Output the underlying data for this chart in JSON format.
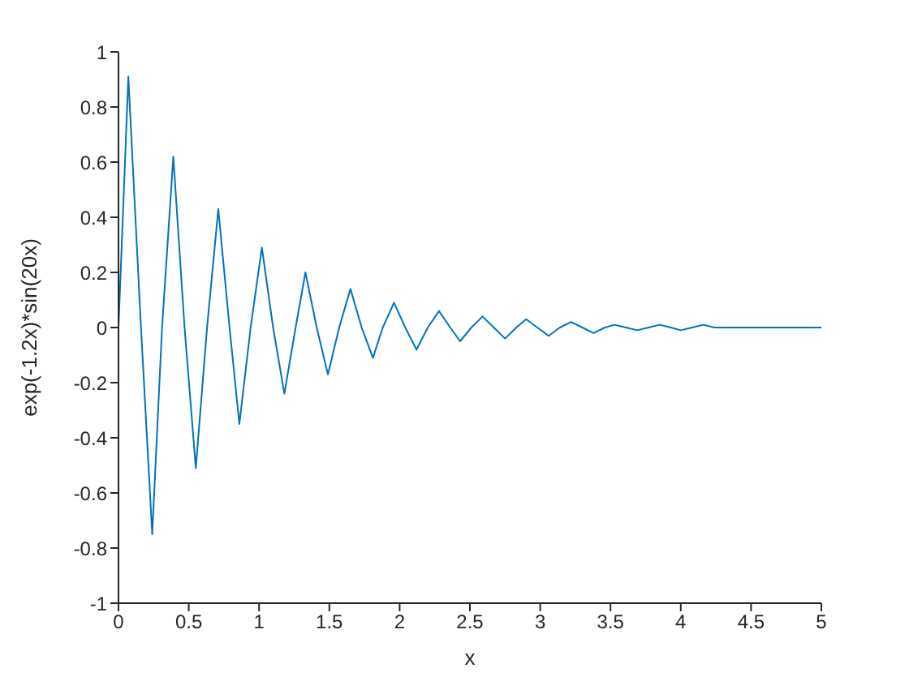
{
  "chart_data": {
    "type": "line",
    "xlabel": "x",
    "ylabel": "exp(-1.2x)*sin(20x)",
    "x": [
      0,
      0.07,
      0.16,
      0.24,
      0.31,
      0.39,
      0.47,
      0.55,
      0.63,
      0.71,
      0.79,
      0.86,
      0.94,
      1.02,
      1.1,
      1.18,
      1.26,
      1.33,
      1.41,
      1.49,
      1.57,
      1.65,
      1.73,
      1.81,
      1.88,
      1.96,
      2.04,
      2.12,
      2.2,
      2.28,
      2.36,
      2.43,
      2.51,
      2.59,
      2.67,
      2.75,
      2.83,
      2.9,
      2.98,
      3.06,
      3.14,
      3.22,
      3.3,
      3.38,
      3.46,
      3.53,
      3.61,
      3.69,
      3.77,
      3.85,
      3.93,
      4,
      4.08,
      4.16,
      4.24,
      4.6,
      5
    ],
    "series": [
      {
        "color": "#0072bd",
        "values": [
          0,
          0.91,
          0,
          -0.75,
          0,
          0.62,
          0,
          -0.51,
          0,
          0.43,
          0,
          -0.35,
          0,
          0.29,
          0,
          -0.24,
          0,
          0.2,
          0,
          -0.17,
          0,
          0.14,
          0,
          -0.11,
          0,
          0.09,
          0,
          -0.08,
          0,
          0.06,
          0,
          -0.05,
          0,
          0.04,
          0,
          -0.04,
          0,
          0.03,
          0,
          -0.03,
          0,
          0.02,
          0,
          -0.02,
          0,
          0.01,
          0,
          -0.01,
          0,
          0.01,
          0,
          -0.01,
          0,
          0.01,
          0,
          0,
          0
        ]
      }
    ],
    "xlim": [
      0,
      5
    ],
    "xticks": [
      0,
      0.5,
      1,
      1.5,
      2,
      2.5,
      3,
      3.5,
      4,
      4.5,
      5
    ],
    "ylim": [
      -1,
      1
    ],
    "yticks": [
      -1,
      -0.8,
      -0.6,
      -0.4,
      -0.2,
      0,
      0.2,
      0.4,
      0.6,
      0.8,
      1
    ],
    "grid": false,
    "legend": false,
    "marker": "none",
    "line_style": "solid"
  }
}
